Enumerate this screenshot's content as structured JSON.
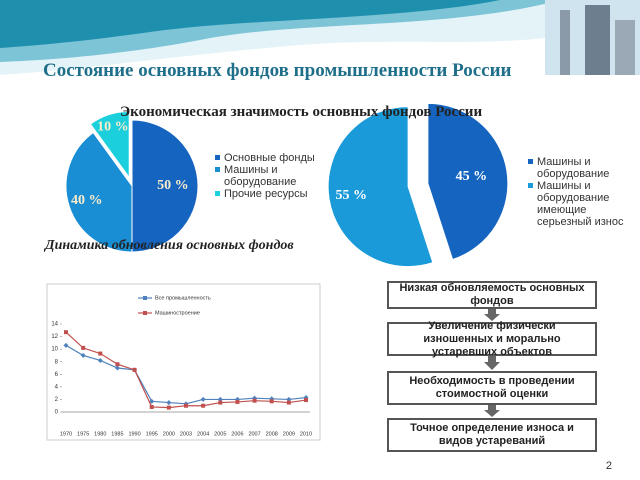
{
  "title": "Состояние основных фондов промышленности России",
  "subtitle": "Экономическая значимость основных фондов России",
  "section_title": "Динамика обновления основных фондов",
  "chart_data": [
    {
      "type": "pie",
      "categories": [
        "Основные фонды",
        "Машины и оборудование",
        "Прочие ресурсы"
      ],
      "values": [
        50,
        40,
        10
      ],
      "value_labels": [
        "50 %",
        "40 %",
        "10 %"
      ],
      "colors": [
        "#1565c0",
        "#1a8ed4",
        "#1ccfdc"
      ]
    },
    {
      "type": "pie",
      "categories": [
        "Машины и оборудование",
        "Машины и оборудование имеющие серьезный износ"
      ],
      "values": [
        45,
        55
      ],
      "value_labels": [
        "45 %",
        "55 %"
      ],
      "colors": [
        "#1565c0",
        "#1a9ad8"
      ]
    },
    {
      "type": "line",
      "categories": [
        "1970",
        "1975",
        "1980",
        "1985",
        "1990",
        "1995",
        "2000",
        "2003",
        "2004",
        "2005",
        "2006",
        "2007",
        "2008",
        "2009",
        "2010"
      ],
      "series": [
        {
          "name": "Все промышленность",
          "color": "#4f81bd",
          "values": [
            10.6,
            9.0,
            8.2,
            7.0,
            6.7,
            1.7,
            1.5,
            1.3,
            2.0,
            2.0,
            2.0,
            2.2,
            2.1,
            2.0,
            2.3
          ]
        },
        {
          "name": "Машиностроение",
          "color": "#c0504d",
          "values": [
            12.7,
            10.2,
            9.3,
            7.6,
            6.7,
            0.8,
            0.7,
            1.0,
            1.0,
            1.5,
            1.6,
            1.8,
            1.7,
            1.5,
            1.9
          ]
        }
      ],
      "ylim": [
        0,
        14
      ],
      "yticks": [
        0,
        2,
        4,
        6,
        8,
        10,
        12,
        14
      ],
      "grid": false
    }
  ],
  "flow": {
    "nodes": [
      {
        "label": "Низкая обновляемость основных фондов"
      },
      {
        "label": "Увеличение физически изношенных и морально устаревших объектов"
      },
      {
        "label": "Необходимость в проведении стоимостной оценки"
      },
      {
        "label": "Точное определение износа и видов устареваний"
      }
    ]
  },
  "page_number": "2"
}
